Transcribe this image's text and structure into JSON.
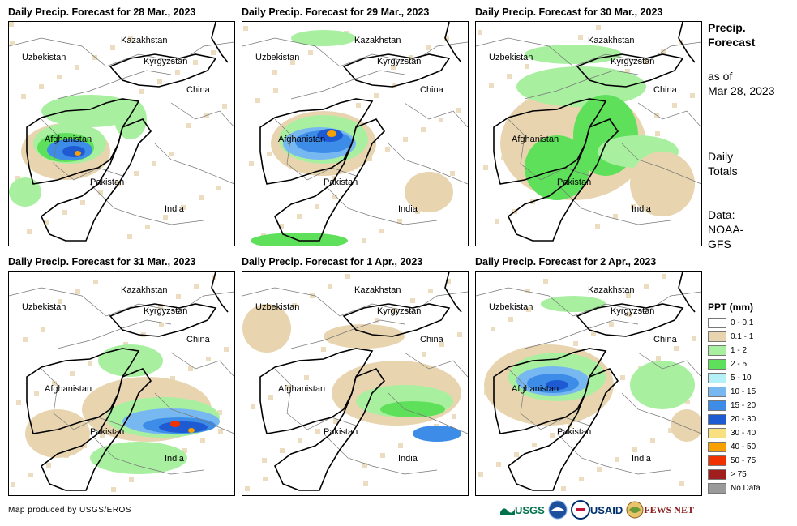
{
  "panels": [
    {
      "title": "Daily Precip. Forecast for 28 Mar., 2023"
    },
    {
      "title": "Daily Precip. Forecast for 29 Mar., 2023"
    },
    {
      "title": "Daily Precip. Forecast for 30 Mar., 2023"
    },
    {
      "title": "Daily Precip. Forecast for 31 Mar., 2023"
    },
    {
      "title": "Daily Precip. Forecast for 1 Apr., 2023"
    },
    {
      "title": "Daily Precip. Forecast for 2 Apr., 2023"
    }
  ],
  "map_labels": {
    "kazakhstan": "Kazakhstan",
    "uzbekistan": "Uzbekistan",
    "kyrgyzstan": "Kyrgyzstan",
    "china": "China",
    "afghanistan": "Afghanistan",
    "pakistan": "Pakistan",
    "india": "India"
  },
  "sidebar": {
    "heading_line1": "Precip.",
    "heading_line2": "Forecast",
    "asof_line1": "as of",
    "asof_line2": "Mar 28, 2023",
    "totals_line1": "Daily",
    "totals_line2": "Totals",
    "data_line1": "Data:",
    "data_line2": "NOAA-",
    "data_line3": "GFS"
  },
  "legend": {
    "title": "PPT (mm)",
    "items": [
      {
        "label": "0 - 0.1",
        "color": "#ffffff"
      },
      {
        "label": "0.1 - 1",
        "color": "#e8d5b0"
      },
      {
        "label": "1 - 2",
        "color": "#a8f0a0"
      },
      {
        "label": "2 - 5",
        "color": "#5ee05a"
      },
      {
        "label": "5 - 10",
        "color": "#b4f0f8"
      },
      {
        "label": "10 - 15",
        "color": "#78b8f0"
      },
      {
        "label": "15 - 20",
        "color": "#3c8ce8"
      },
      {
        "label": "20 - 30",
        "color": "#1e5ad2"
      },
      {
        "label": "30 - 40",
        "color": "#f8e080"
      },
      {
        "label": "40 - 50",
        "color": "#f8a000"
      },
      {
        "label": "50 - 75",
        "color": "#f03200"
      },
      {
        "label": "> 75",
        "color": "#a01e1e"
      },
      {
        "label": "No Data",
        "color": "#9a9a9a"
      }
    ]
  },
  "footer": {
    "credit": "Map produced by USGS/EROS",
    "usgs": "USGS",
    "usaid": "USAID",
    "fewsnet": "FEWS NET"
  }
}
